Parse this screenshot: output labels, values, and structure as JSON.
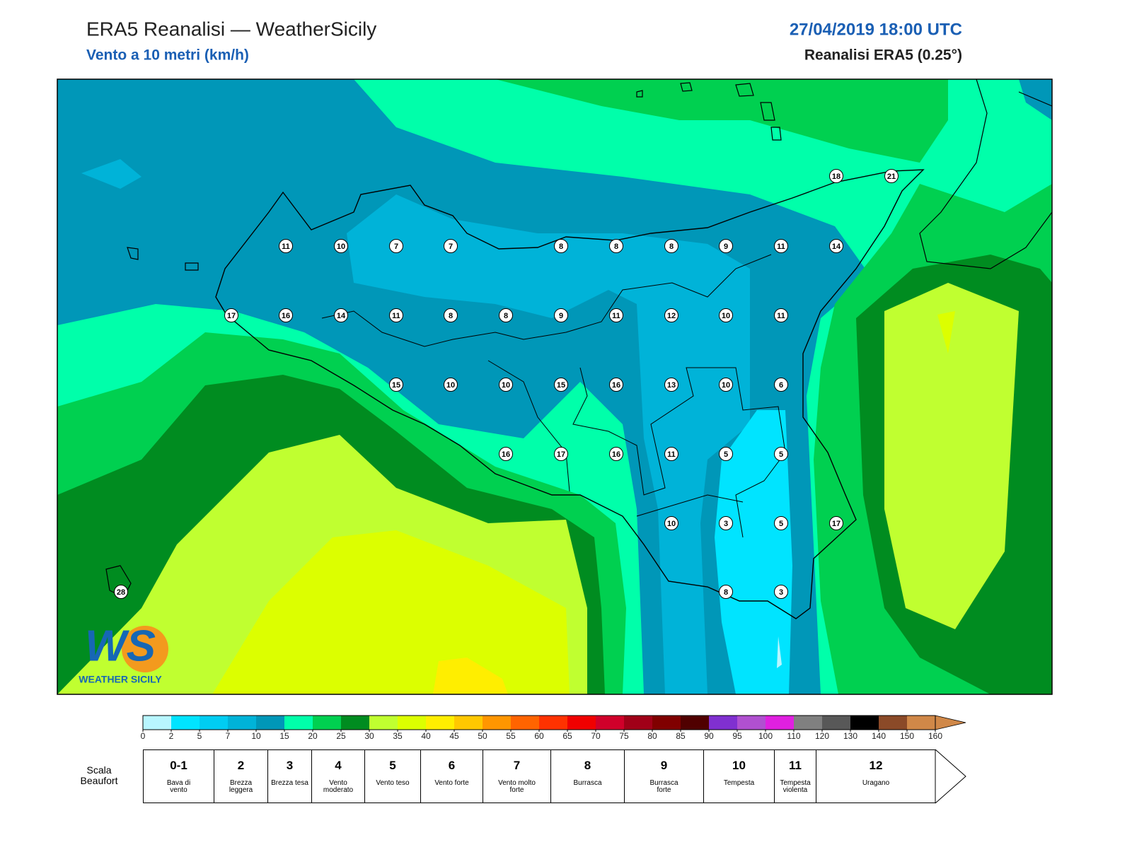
{
  "header": {
    "title": "ERA5 Reanalisi — WeatherSicily",
    "subtitle": "Vento a 10 metri (km/h)",
    "datetime": "27/04/2019 18:00 UTC",
    "source": "Reanalisi ERA5 (0.25°)"
  },
  "stations": [
    18,
    21,
    11,
    10,
    7,
    7,
    8,
    8,
    8,
    9,
    11,
    14,
    17,
    16,
    14,
    11,
    8,
    8,
    9,
    11,
    12,
    10,
    11,
    15,
    10,
    10,
    15,
    16,
    13,
    10,
    6,
    16,
    17,
    16,
    11,
    5,
    5,
    10,
    3,
    5,
    17,
    28,
    8,
    3
  ],
  "colorbar": {
    "ticks": [
      0,
      2,
      5,
      7,
      10,
      15,
      20,
      25,
      30,
      35,
      40,
      45,
      50,
      55,
      60,
      65,
      70,
      75,
      80,
      85,
      90,
      95,
      100,
      110,
      120,
      130,
      140,
      150,
      160
    ],
    "colors": [
      "#b8f6ff",
      "#00e4ff",
      "#00cdf2",
      "#00b3d8",
      "#0097b8",
      "#00ffaa",
      "#00d050",
      "#008c20",
      "#c0ff30",
      "#dcff00",
      "#ffee00",
      "#ffc800",
      "#ff9600",
      "#ff6400",
      "#ff3200",
      "#f00000",
      "#d0002a",
      "#a00018",
      "#800000",
      "#500000",
      "#8030d0",
      "#b050d0",
      "#e020e0",
      "#808080",
      "#585858",
      "#000000",
      "#8b4a28",
      "#d08848"
    ],
    "over_color": "#d08848"
  },
  "beaufort": {
    "label": "Scala Beaufort",
    "levels": [
      {
        "force": "0-1",
        "name": "Bava di vento"
      },
      {
        "force": "2",
        "name": "Brezza leggera"
      },
      {
        "force": "3",
        "name": "Brezza tesa"
      },
      {
        "force": "4",
        "name": "Vento moderato"
      },
      {
        "force": "5",
        "name": "Vento teso"
      },
      {
        "force": "6",
        "name": "Vento forte"
      },
      {
        "force": "7",
        "name": "Vento molto forte"
      },
      {
        "force": "8",
        "name": "Burrasca"
      },
      {
        "force": "9",
        "name": "Burrasca forte"
      },
      {
        "force": "10",
        "name": "Tempesta"
      },
      {
        "force": "11",
        "name": "Tempesta violenta"
      },
      {
        "force": "12",
        "name": "Uragano"
      }
    ]
  },
  "logo": {
    "mark": "WS",
    "name": "WEATHER SICILY"
  }
}
